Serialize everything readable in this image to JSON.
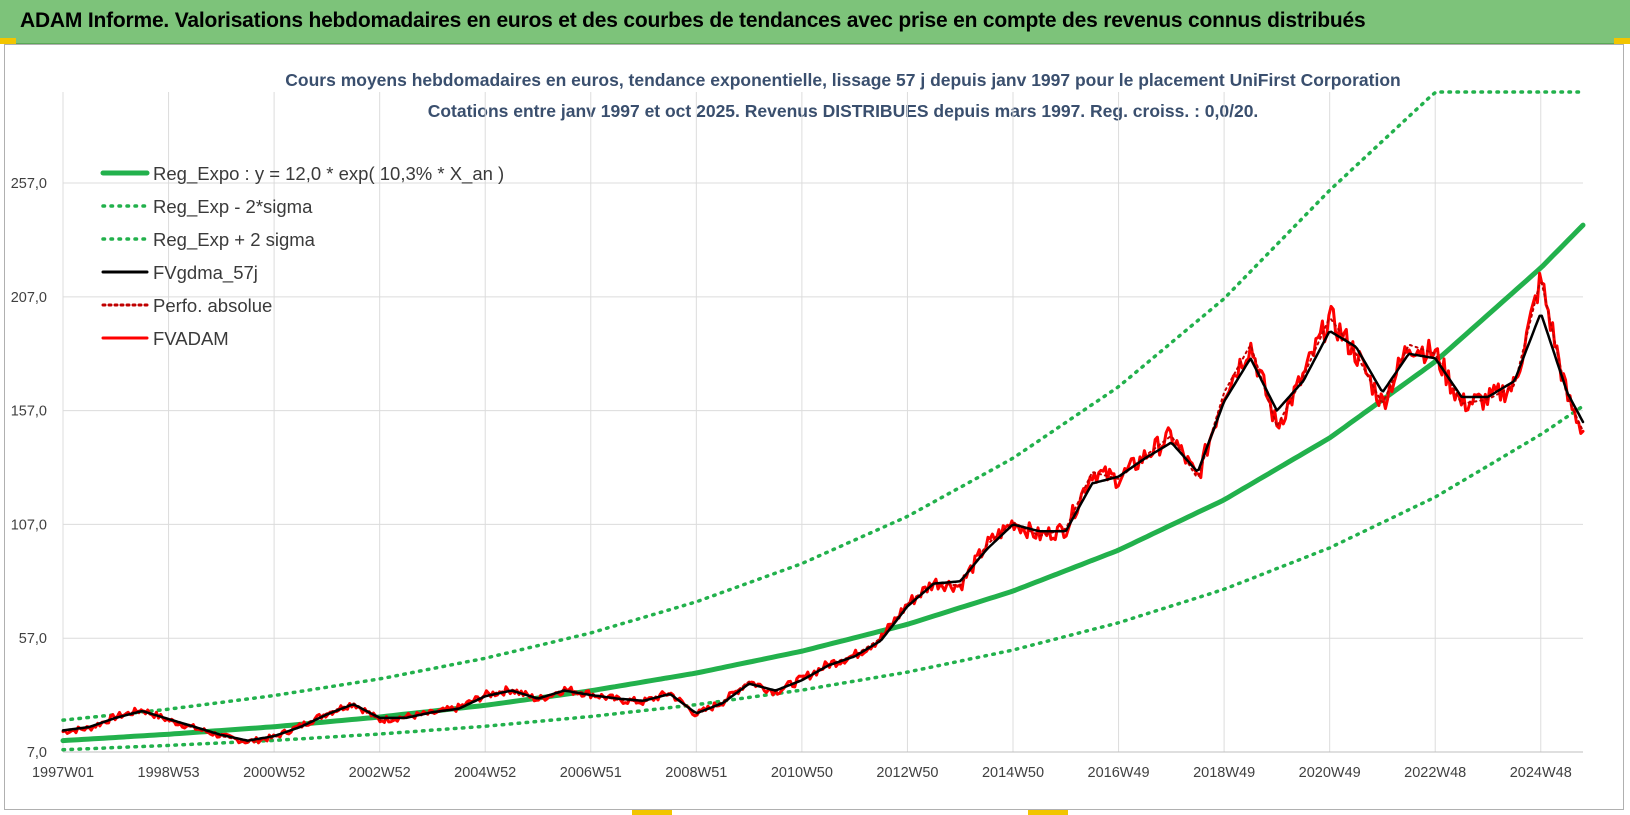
{
  "banner": {
    "title": "ADAM Informe. Valorisations hebdomadaires en euros et des courbes de tendances avec prise en compte des revenus connus distribués"
  },
  "chart_data": {
    "type": "line",
    "title_line1": "Cours moyens hebdomadaires en euros, tendance exponentielle, lissage 57 j depuis janv 1997 pour le placement UniFirst Corporation",
    "title_line2": "Cotations entre janv 1997 et oct 2025. Revenus DISTRIBUES depuis mars 1997.  Reg. croiss. : 0,0/20.",
    "xlabel": "",
    "ylabel": "",
    "ylim": [
      7,
      297
    ],
    "xlim": [
      1997.0,
      2025.8
    ],
    "y_ticks": [
      "7,0",
      "57,0",
      "107,0",
      "157,0",
      "207,0",
      "257,0"
    ],
    "y_tick_values": [
      7,
      57,
      107,
      157,
      207,
      257
    ],
    "x_ticks": [
      "1997W01",
      "1998W53",
      "2000W52",
      "2002W52",
      "2004W52",
      "2006W51",
      "2008W51",
      "2010W50",
      "2012W50",
      "2014W50",
      "2016W49",
      "2018W49",
      "2020W49",
      "2022W48",
      "2024W48"
    ],
    "x_tick_values": [
      1997.0,
      1999.0,
      2001.0,
      2003.0,
      2005.0,
      2007.0,
      2009.0,
      2011.0,
      2013.0,
      2015.0,
      2017.0,
      2019.0,
      2021.0,
      2023.0,
      2025.0
    ],
    "grid": true,
    "legend_position": "top-left",
    "series": [
      {
        "name": "Reg_Expo : y = 12,0 * exp( 10,3% *  X_an )",
        "color": "#22b14c",
        "style": "solid",
        "x": [
          1997.0,
          1999.0,
          2001.0,
          2003.0,
          2005.0,
          2007.0,
          2009.0,
          2011.0,
          2013.0,
          2015.0,
          2017.0,
          2019.0,
          2021.0,
          2023.0,
          2025.0,
          2025.8
        ],
        "values": [
          12.0,
          14.8,
          18.1,
          22.4,
          27.5,
          33.9,
          41.7,
          51.3,
          63.1,
          77.7,
          95.7,
          117.8,
          145.0,
          178.5,
          219.7,
          238.5
        ]
      },
      {
        "name": "Reg_Exp - 2*sigma",
        "color": "#22b14c",
        "style": "dotted",
        "x": [
          1997.0,
          1999.0,
          2001.0,
          2003.0,
          2005.0,
          2007.0,
          2009.0,
          2011.0,
          2013.0,
          2015.0,
          2017.0,
          2019.0,
          2021.0,
          2023.0,
          2025.0,
          2025.8
        ],
        "values": [
          8.0,
          9.9,
          12.1,
          14.9,
          18.3,
          22.6,
          27.8,
          34.2,
          42.1,
          51.8,
          63.8,
          78.5,
          96.7,
          119.0,
          146.5,
          159.0
        ]
      },
      {
        "name": "Reg_Exp + 2 sigma",
        "color": "#22b14c",
        "style": "dotted",
        "x": [
          1997.0,
          1999.0,
          2001.0,
          2003.0,
          2005.0,
          2007.0,
          2009.0,
          2011.0,
          2013.0,
          2015.0,
          2017.0,
          2019.0,
          2021.0,
          2023.0,
          2025.0,
          2025.8
        ],
        "values": [
          21.0,
          25.8,
          31.8,
          39.1,
          48.2,
          59.3,
          73.0,
          89.8,
          110.5,
          136.1,
          167.5,
          206.2,
          253.8,
          297.0,
          297.0,
          297.0
        ]
      },
      {
        "name": "FVgdma_57j",
        "color": "#000000",
        "style": "solid",
        "x": [
          1997.0,
          1997.5,
          1998.0,
          1998.5,
          1999.0,
          1999.5,
          2000.0,
          2000.5,
          2001.0,
          2001.5,
          2002.0,
          2002.5,
          2003.0,
          2003.5,
          2004.0,
          2004.5,
          2005.0,
          2005.5,
          2006.0,
          2006.5,
          2007.0,
          2007.5,
          2008.0,
          2008.5,
          2009.0,
          2009.5,
          2010.0,
          2010.5,
          2011.0,
          2011.5,
          2012.0,
          2012.5,
          2013.0,
          2013.5,
          2014.0,
          2014.5,
          2015.0,
          2015.5,
          2016.0,
          2016.5,
          2017.0,
          2017.5,
          2018.0,
          2018.5,
          2019.0,
          2019.5,
          2020.0,
          2020.5,
          2021.0,
          2021.5,
          2022.0,
          2022.5,
          2023.0,
          2023.5,
          2024.0,
          2024.5,
          2025.0,
          2025.5,
          2025.8
        ],
        "values": [
          16.5,
          18.0,
          22.0,
          25.0,
          21.5,
          18.0,
          14.5,
          12.0,
          14.0,
          18.0,
          23.5,
          28.0,
          22.0,
          22.0,
          24.5,
          26.0,
          31.5,
          34.0,
          30.5,
          34.0,
          32.0,
          30.5,
          29.5,
          32.5,
          24.0,
          28.5,
          37.0,
          34.0,
          38.5,
          45.0,
          49.0,
          56.0,
          71.0,
          81.0,
          82.0,
          96.0,
          107.0,
          104.0,
          104.0,
          125.0,
          128.0,
          136.0,
          143.0,
          130.0,
          161.0,
          180.0,
          157.0,
          170.0,
          192.0,
          185.0,
          165.0,
          182.0,
          180.0,
          163.0,
          163.0,
          170.0,
          200.0,
          165.0,
          152.0
        ]
      },
      {
        "name": "Perfo. absolue",
        "color": "#c00000",
        "style": "dotted",
        "x": [
          1997.0,
          1997.5,
          1998.0,
          1998.5,
          1999.0,
          1999.5,
          2000.0,
          2000.5,
          2001.0,
          2001.5,
          2002.0,
          2002.5,
          2003.0,
          2003.5,
          2004.0,
          2004.5,
          2005.0,
          2005.5,
          2006.0,
          2006.5,
          2007.0,
          2007.5,
          2008.0,
          2008.5,
          2009.0,
          2009.5,
          2010.0,
          2010.5,
          2011.0,
          2011.5,
          2012.0,
          2012.5,
          2013.0,
          2013.5,
          2014.0,
          2014.5,
          2015.0,
          2015.5,
          2016.0,
          2016.5,
          2017.0,
          2017.5,
          2018.0,
          2018.5,
          2019.0,
          2019.5,
          2020.0,
          2020.5,
          2021.0,
          2021.5,
          2022.0,
          2022.5,
          2023.0,
          2023.5,
          2024.0,
          2024.5,
          2025.0,
          2025.5,
          2025.8
        ],
        "values": [
          16.0,
          17.5,
          22.5,
          25.5,
          21.0,
          17.5,
          14.0,
          11.5,
          13.5,
          18.5,
          24.0,
          28.5,
          21.0,
          22.5,
          24.0,
          26.5,
          32.0,
          34.5,
          30.0,
          34.5,
          32.5,
          30.0,
          29.0,
          33.0,
          23.5,
          29.0,
          38.0,
          33.5,
          39.0,
          45.5,
          49.5,
          57.0,
          72.0,
          81.5,
          80.0,
          98.0,
          108.0,
          102.0,
          105.0,
          130.0,
          127.0,
          137.0,
          146.0,
          127.0,
          165.0,
          186.0,
          150.0,
          172.0,
          198.0,
          182.0,
          160.0,
          186.0,
          182.0,
          160.0,
          162.0,
          168.0,
          215.0,
          163.0,
          148.0
        ]
      },
      {
        "name": "FVADAM",
        "color": "#ff0000",
        "style": "solid",
        "x": [
          1997.0,
          1997.5,
          1998.0,
          1998.5,
          1999.0,
          1999.5,
          2000.0,
          2000.5,
          2001.0,
          2001.5,
          2002.0,
          2002.5,
          2003.0,
          2003.5,
          2004.0,
          2004.5,
          2005.0,
          2005.5,
          2006.0,
          2006.5,
          2007.0,
          2007.5,
          2008.0,
          2008.5,
          2009.0,
          2009.5,
          2010.0,
          2010.5,
          2011.0,
          2011.5,
          2012.0,
          2012.5,
          2013.0,
          2013.5,
          2014.0,
          2014.5,
          2015.0,
          2015.5,
          2016.0,
          2016.5,
          2017.0,
          2017.5,
          2018.0,
          2018.5,
          2019.0,
          2019.5,
          2020.0,
          2020.5,
          2021.0,
          2021.5,
          2022.0,
          2022.5,
          2023.0,
          2023.5,
          2024.0,
          2024.5,
          2025.0,
          2025.5,
          2025.8
        ],
        "values": [
          16.0,
          17.5,
          22.5,
          25.5,
          21.0,
          17.5,
          14.0,
          11.5,
          13.5,
          18.5,
          24.0,
          28.5,
          21.0,
          22.5,
          24.0,
          26.5,
          32.0,
          34.5,
          30.0,
          34.5,
          32.5,
          30.0,
          29.0,
          33.0,
          23.5,
          29.0,
          38.0,
          33.5,
          39.0,
          45.5,
          49.5,
          57.0,
          72.0,
          81.5,
          80.0,
          98.0,
          108.0,
          102.0,
          105.0,
          130.0,
          127.0,
          137.0,
          146.0,
          127.0,
          165.0,
          186.0,
          150.0,
          172.0,
          198.0,
          182.0,
          160.0,
          186.0,
          182.0,
          160.0,
          162.0,
          168.0,
          215.0,
          163.0,
          148.0
        ]
      }
    ]
  }
}
